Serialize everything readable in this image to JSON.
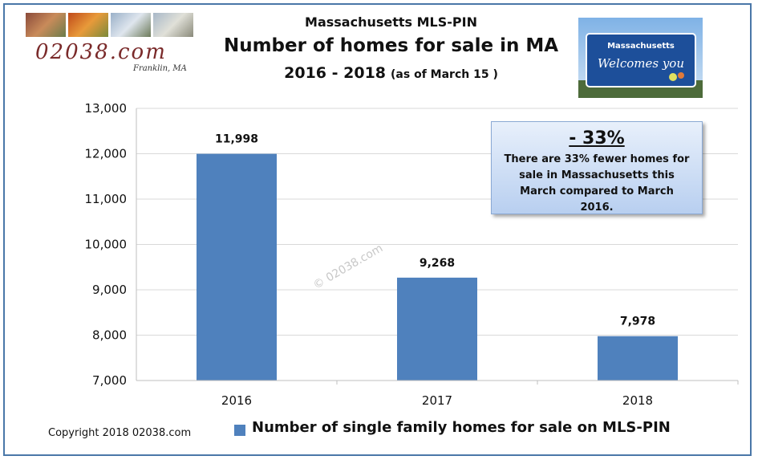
{
  "header": {
    "source": "Massachusetts MLS-PIN",
    "title": "Number of homes for sale in MA",
    "years": "2016 - 2018",
    "as_of": "(as of March 15 )"
  },
  "logo": {
    "text": "02038.com",
    "script": "Franklin, MA"
  },
  "sign": {
    "line1": "Massachusetts",
    "line2": "Welcomes you"
  },
  "callout": {
    "percent": "- 33%",
    "text": "There are 33% fewer homes for sale in Massachusetts this March compared to March 2016."
  },
  "watermark": "© 02038.com",
  "copyright": "Copyright 2018 02038.com",
  "chart_data": {
    "type": "bar",
    "categories": [
      "2016",
      "2017",
      "2018"
    ],
    "series": [
      {
        "name": "Number of single family homes for sale on MLS-PIN",
        "values": [
          11998,
          9268,
          7978
        ],
        "labels": [
          "11,998",
          "9,268",
          "7,978"
        ]
      }
    ],
    "ylim": [
      7000,
      13000
    ],
    "yticks": [
      7000,
      8000,
      9000,
      10000,
      11000,
      12000,
      13000
    ],
    "ytick_labels": [
      "7,000",
      "8,000",
      "9,000",
      "10,000",
      "11,000",
      "12,000",
      "13,000"
    ],
    "grid": true,
    "legend": "bottom",
    "bar_color": "#4f81bd"
  }
}
